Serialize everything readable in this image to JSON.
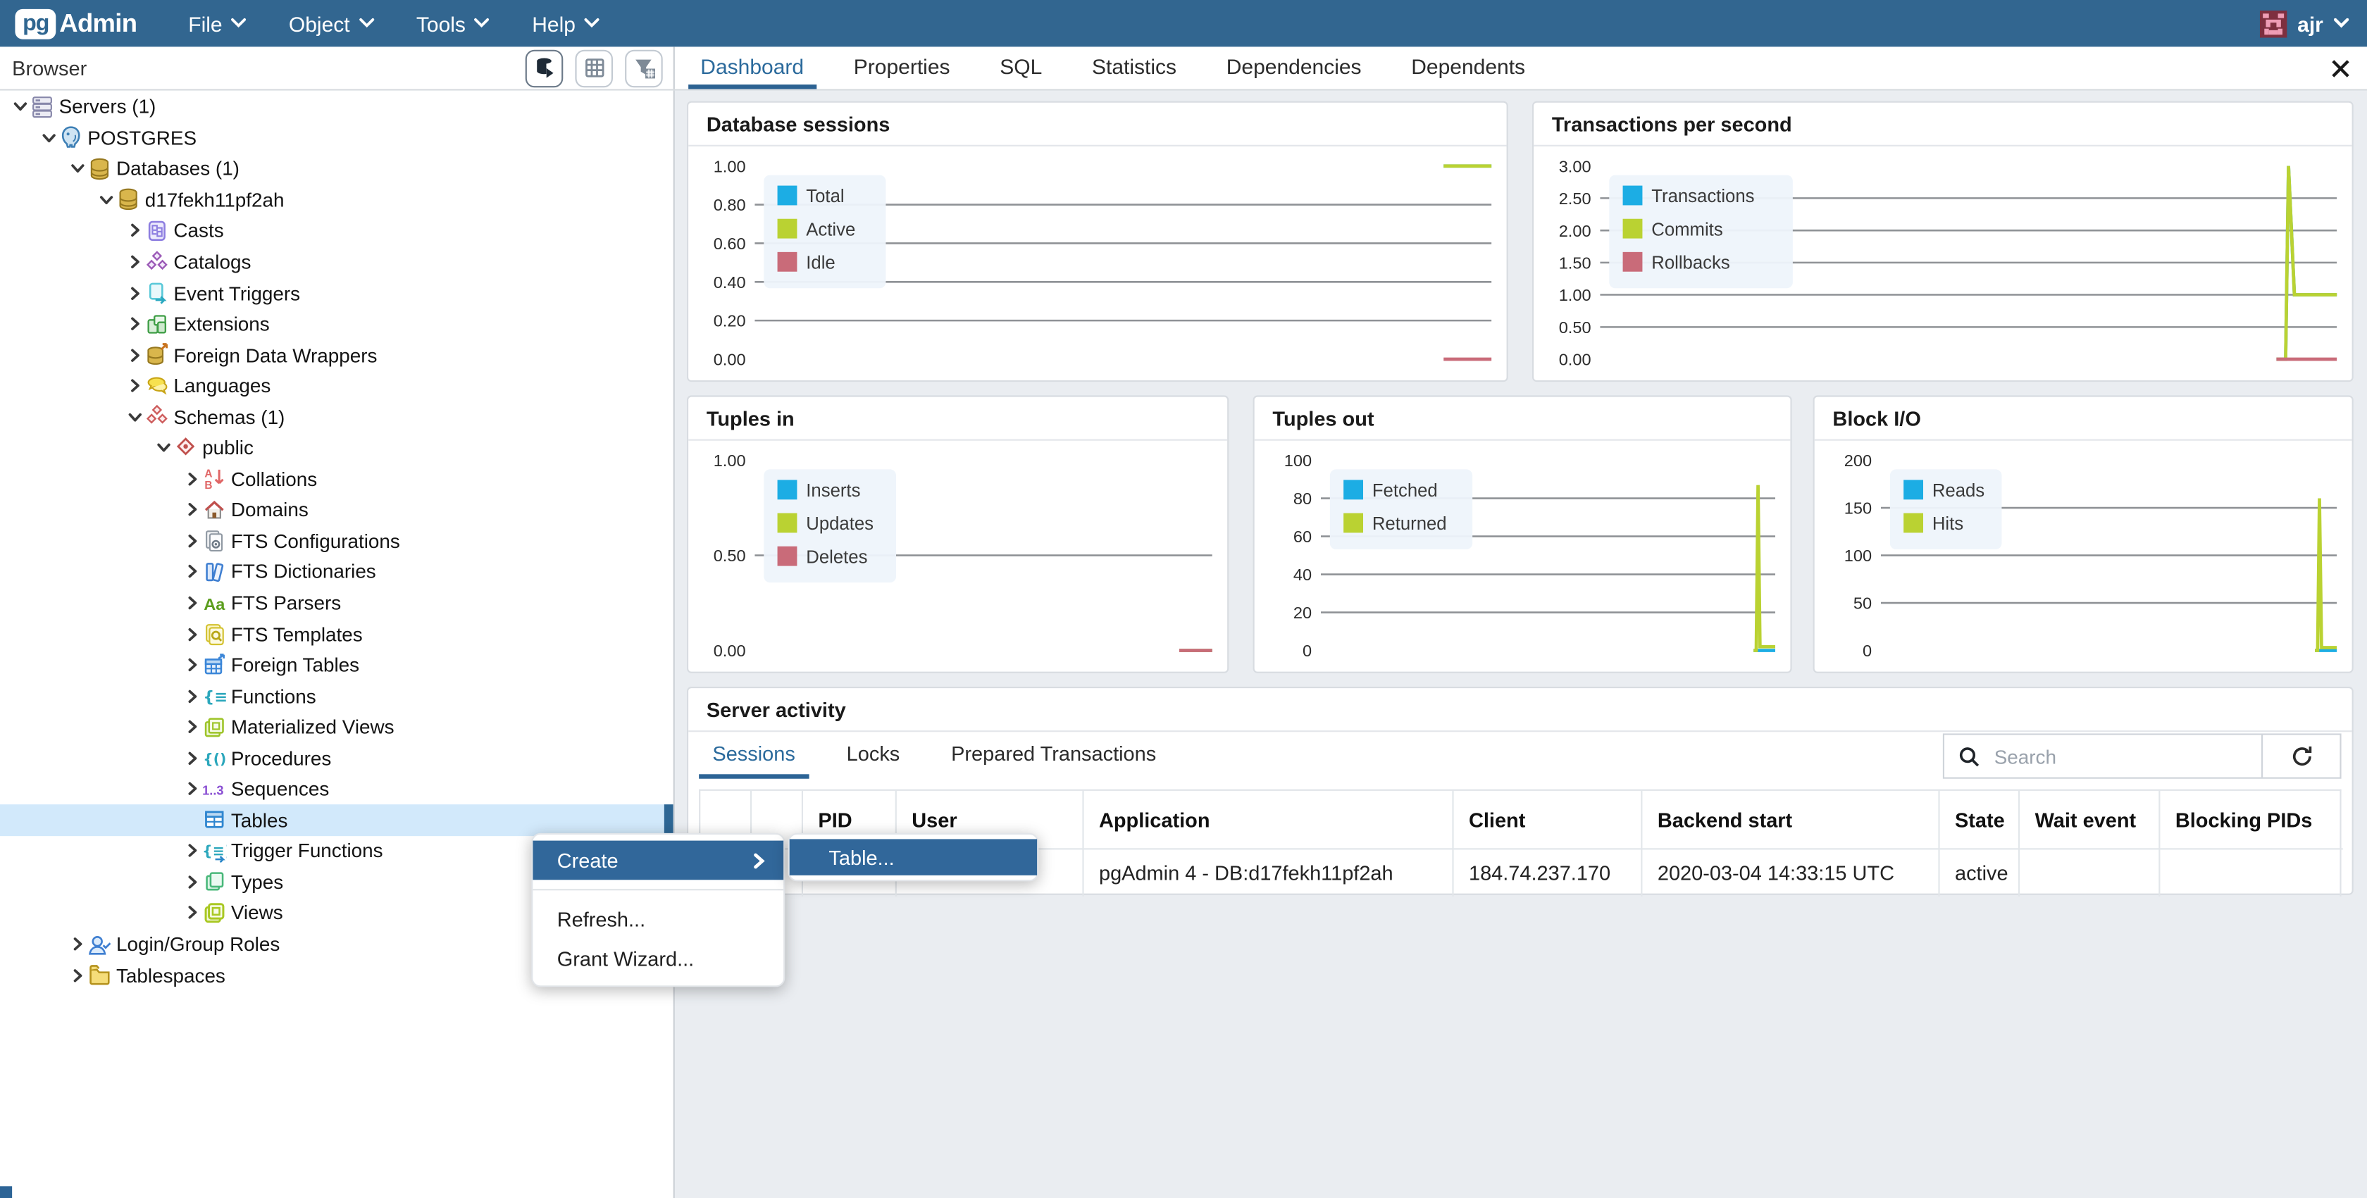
{
  "topbar": {
    "logo_pg": "pg",
    "logo_admin": "Admin",
    "menus": [
      {
        "label": "File"
      },
      {
        "label": "Object"
      },
      {
        "label": "Tools"
      },
      {
        "label": "Help"
      }
    ],
    "user": "ajr"
  },
  "browser_panel": {
    "title": "Browser"
  },
  "main_tabs": {
    "active": "Dashboard",
    "tabs": [
      {
        "label": "Dashboard"
      },
      {
        "label": "Properties"
      },
      {
        "label": "SQL"
      },
      {
        "label": "Statistics"
      },
      {
        "label": "Dependencies"
      },
      {
        "label": "Dependents"
      }
    ]
  },
  "tree": {
    "items": [
      {
        "label": "Servers (1)",
        "level": 0,
        "state": "expanded",
        "icon": "server"
      },
      {
        "label": "POSTGRES",
        "level": 1,
        "state": "expanded",
        "icon": "postgres"
      },
      {
        "label": "Databases (1)",
        "level": 2,
        "state": "expanded",
        "icon": "database"
      },
      {
        "label": "d17fekh11pf2ah",
        "level": 3,
        "state": "expanded",
        "icon": "database"
      },
      {
        "label": "Casts",
        "level": 4,
        "state": "collapsed",
        "icon": "casts"
      },
      {
        "label": "Catalogs",
        "level": 4,
        "state": "collapsed",
        "icon": "catalogs"
      },
      {
        "label": "Event Triggers",
        "level": 4,
        "state": "collapsed",
        "icon": "event-triggers"
      },
      {
        "label": "Extensions",
        "level": 4,
        "state": "collapsed",
        "icon": "extensions"
      },
      {
        "label": "Foreign Data Wrappers",
        "level": 4,
        "state": "collapsed",
        "icon": "fdw"
      },
      {
        "label": "Languages",
        "level": 4,
        "state": "collapsed",
        "icon": "languages"
      },
      {
        "label": "Schemas (1)",
        "level": 4,
        "state": "expanded",
        "icon": "schemas"
      },
      {
        "label": "public",
        "level": 5,
        "state": "expanded",
        "icon": "schema"
      },
      {
        "label": "Collations",
        "level": 6,
        "state": "collapsed",
        "icon": "collations"
      },
      {
        "label": "Domains",
        "level": 6,
        "state": "collapsed",
        "icon": "domains"
      },
      {
        "label": "FTS Configurations",
        "level": 6,
        "state": "collapsed",
        "icon": "fts-config"
      },
      {
        "label": "FTS Dictionaries",
        "level": 6,
        "state": "collapsed",
        "icon": "fts-dict"
      },
      {
        "label": "FTS Parsers",
        "level": 6,
        "state": "collapsed",
        "icon": "fts-parsers"
      },
      {
        "label": "FTS Templates",
        "level": 6,
        "state": "collapsed",
        "icon": "fts-templates"
      },
      {
        "label": "Foreign Tables",
        "level": 6,
        "state": "collapsed",
        "icon": "foreign-tables"
      },
      {
        "label": "Functions",
        "level": 6,
        "state": "collapsed",
        "icon": "functions"
      },
      {
        "label": "Materialized Views",
        "level": 6,
        "state": "collapsed",
        "icon": "mat-views"
      },
      {
        "label": "Procedures",
        "level": 6,
        "state": "collapsed",
        "icon": "procedures"
      },
      {
        "label": "Sequences",
        "level": 6,
        "state": "collapsed",
        "icon": "sequences"
      },
      {
        "label": "Tables",
        "level": 6,
        "state": "leaf",
        "icon": "tables",
        "selected": true
      },
      {
        "label": "Trigger Functions",
        "level": 6,
        "state": "collapsed",
        "icon": "trigger-functions"
      },
      {
        "label": "Types",
        "level": 6,
        "state": "collapsed",
        "icon": "types"
      },
      {
        "label": "Views",
        "level": 6,
        "state": "collapsed",
        "icon": "views"
      },
      {
        "label": "Login/Group Roles",
        "level": 2,
        "state": "collapsed",
        "icon": "login-roles"
      },
      {
        "label": "Tablespaces",
        "level": 2,
        "state": "collapsed",
        "icon": "tablespaces"
      }
    ]
  },
  "context_menu": {
    "items": [
      {
        "label": "Create",
        "has_submenu": true,
        "highlighted": true
      },
      {
        "label": "Refresh..."
      },
      {
        "label": "Grant Wizard..."
      }
    ],
    "submenu_items": [
      {
        "label": "Table...",
        "highlighted": true
      }
    ]
  },
  "palette": {
    "blue": "#1cade4",
    "green": "#bad232",
    "red": "#c96b79",
    "accent": "#31679a"
  },
  "chart_data": [
    {
      "type": "line",
      "title": "Database sessions",
      "ylim": [
        0,
        1
      ],
      "yticks": [
        "1.00",
        "0.80",
        "0.60",
        "0.40",
        "0.20",
        "0.00"
      ],
      "legend": [
        "Total",
        "Active",
        "Idle"
      ],
      "legend_position": "top-left",
      "grid": true,
      "series": [
        {
          "name": "Total",
          "color": "blue",
          "points": [
            [
              0.935,
              1
            ],
            [
              1,
              1
            ]
          ]
        },
        {
          "name": "Active",
          "color": "green",
          "points": [
            [
              0.935,
              1
            ],
            [
              1,
              1
            ]
          ]
        },
        {
          "name": "Idle",
          "color": "red",
          "points": [
            [
              0.935,
              0
            ],
            [
              1,
              0
            ]
          ]
        }
      ]
    },
    {
      "type": "line",
      "title": "Transactions per second",
      "ylim": [
        0,
        3
      ],
      "yticks": [
        "3.00",
        "2.50",
        "2.00",
        "1.50",
        "1.00",
        "0.50",
        "0.00"
      ],
      "legend": [
        "Transactions",
        "Commits",
        "Rollbacks"
      ],
      "legend_position": "top-left",
      "grid": true,
      "series": [
        {
          "name": "Transactions",
          "color": "blue",
          "points": [
            [
              0.918,
              0
            ],
            [
              0.9305,
              0
            ],
            [
              0.9345,
              3
            ],
            [
              0.9425,
              1
            ],
            [
              1,
              1
            ]
          ]
        },
        {
          "name": "Commits",
          "color": "green",
          "points": [
            [
              0.918,
              0
            ],
            [
              0.9305,
              0
            ],
            [
              0.9345,
              3
            ],
            [
              0.9425,
              1
            ],
            [
              1,
              1
            ]
          ]
        },
        {
          "name": "Rollbacks",
          "color": "red",
          "points": [
            [
              0.918,
              0
            ],
            [
              1,
              0
            ]
          ]
        }
      ]
    },
    {
      "type": "line",
      "title": "Tuples in",
      "ylim": [
        0,
        1
      ],
      "yticks": [
        "1.00",
        "0.50",
        "0.00"
      ],
      "legend": [
        "Inserts",
        "Updates",
        "Deletes"
      ],
      "legend_position": "top-left",
      "grid": true,
      "series": [
        {
          "name": "Inserts",
          "color": "blue",
          "points": [
            [
              0.928,
              0
            ],
            [
              1,
              0
            ]
          ]
        },
        {
          "name": "Updates",
          "color": "green",
          "points": [
            [
              0.928,
              0
            ],
            [
              1,
              0
            ]
          ]
        },
        {
          "name": "Deletes",
          "color": "red",
          "points": [
            [
              0.928,
              0
            ],
            [
              1,
              0
            ]
          ]
        }
      ]
    },
    {
      "type": "line",
      "title": "Tuples out",
      "ylim": [
        0,
        100
      ],
      "yticks": [
        "100",
        "80",
        "60",
        "40",
        "20",
        "0"
      ],
      "legend": [
        "Fetched",
        "Returned"
      ],
      "legend_position": "top-left",
      "grid": true,
      "series": [
        {
          "name": "Fetched",
          "color": "blue",
          "points": [
            [
              0.952,
              0
            ],
            [
              1,
              0
            ]
          ]
        },
        {
          "name": "Returned",
          "color": "green",
          "points": [
            [
              0.952,
              0
            ],
            [
              0.958,
              0
            ],
            [
              0.962,
              87
            ],
            [
              0.9665,
              2
            ],
            [
              1,
              2
            ]
          ]
        }
      ]
    },
    {
      "type": "line",
      "title": "Block I/O",
      "ylim": [
        0,
        200
      ],
      "yticks": [
        "200",
        "150",
        "100",
        "50",
        "0"
      ],
      "legend": [
        "Reads",
        "Hits"
      ],
      "legend_position": "top-left",
      "grid": true,
      "series": [
        {
          "name": "Reads",
          "color": "blue",
          "points": [
            [
              0.952,
              0
            ],
            [
              1,
              0
            ]
          ]
        },
        {
          "name": "Hits",
          "color": "green",
          "points": [
            [
              0.952,
              0
            ],
            [
              0.958,
              0
            ],
            [
              0.962,
              160
            ],
            [
              0.9665,
              3
            ],
            [
              1,
              3
            ]
          ]
        }
      ]
    }
  ],
  "server_activity": {
    "title": "Server activity",
    "tabs": [
      {
        "label": "Sessions",
        "active": true
      },
      {
        "label": "Locks"
      },
      {
        "label": "Prepared Transactions"
      }
    ],
    "search_placeholder": "Search",
    "table": {
      "columns": [
        {
          "label": ""
        },
        {
          "label": ""
        },
        {
          "label": "PID"
        },
        {
          "label": "User"
        },
        {
          "label": "Application"
        },
        {
          "label": "Client"
        },
        {
          "label": "Backend start"
        },
        {
          "label": "State"
        },
        {
          "label": "Wait event"
        },
        {
          "label": "Blocking PIDs"
        }
      ],
      "rows": [
        [
          "",
          "",
          "",
          "",
          "pgAdmin 4 - DB:d17fekh11pf2ah",
          "184.74.237.170",
          "2020-03-04 14:33:15 UTC",
          "active",
          "",
          ""
        ]
      ]
    }
  }
}
